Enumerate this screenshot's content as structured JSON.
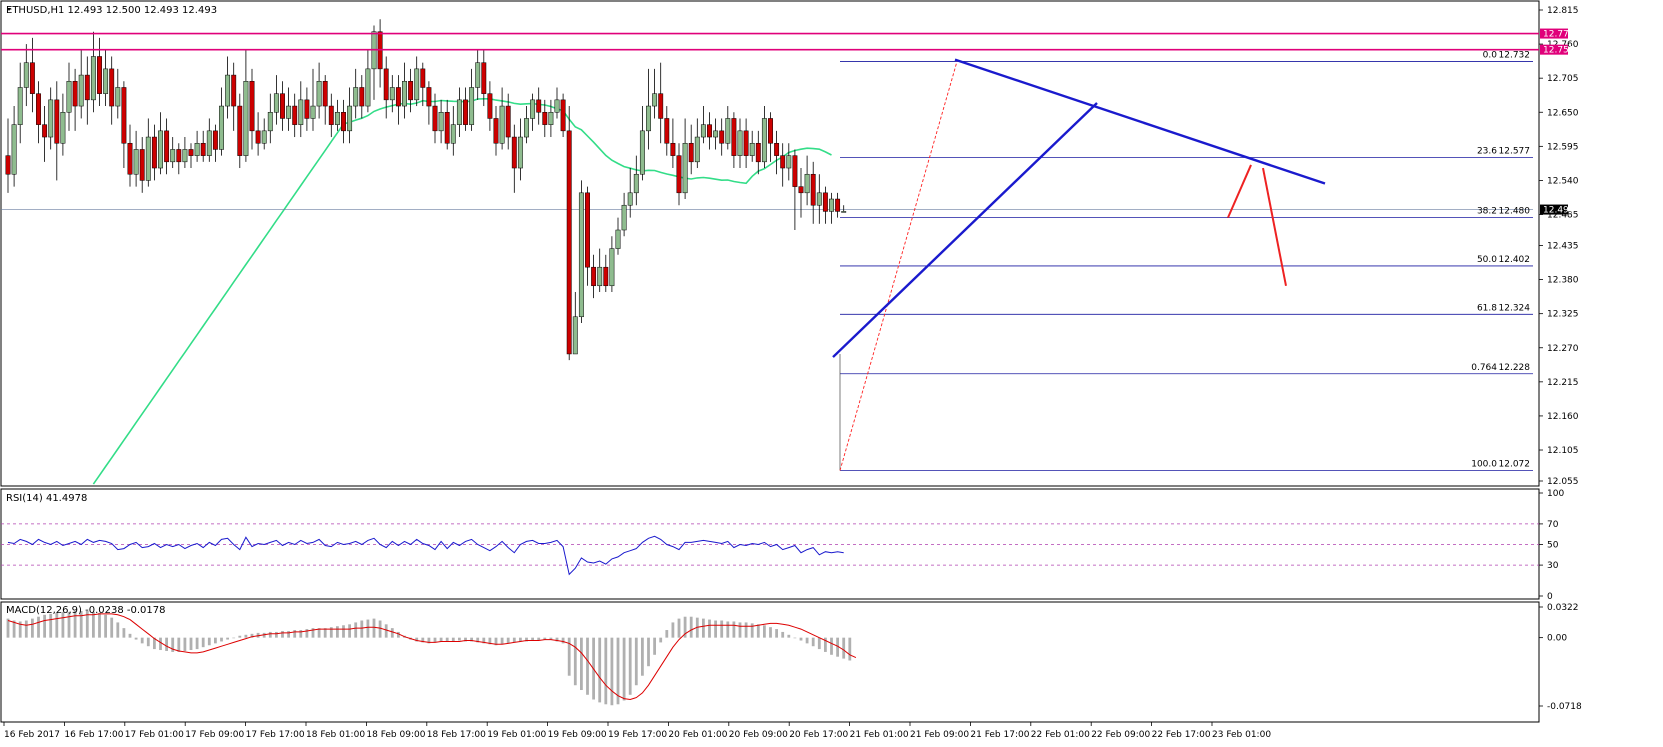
{
  "header": {
    "symbol_info": "ETHUSD,H1  12.493 12.500 12.493 12.493",
    "rsi_label": "RSI(14) 41.4978",
    "macd_label": "MACD(12,26,9) -0.0238 -0.0178"
  },
  "colors": {
    "bull_candle": "#8fbc8f",
    "bear_candle": "#cc0000",
    "ma_line": "#33dd88",
    "trend_line": "#1a1acd",
    "fib_line": "#1a1aa0",
    "resistance_line": "#e0007a",
    "rsi_line": "#1a1acd",
    "rsi_levels": "#b040b0",
    "macd_signal": "#dd0000",
    "macd_hist": "#b0b0b0",
    "projection": "#ee2222"
  },
  "chart_data": {
    "type": "candlestick",
    "price_axis": {
      "ticks": [
        "12.815",
        "12.760",
        "12.705",
        "12.650",
        "12.595",
        "12.540",
        "12.485",
        "12.435",
        "12.380",
        "12.325",
        "12.270",
        "12.215",
        "12.160",
        "12.105",
        "12.055"
      ],
      "range": [
        12.055,
        12.825
      ]
    },
    "time_axis": {
      "ticks": [
        "16 Feb 2017",
        "16 Feb 17:00",
        "17 Feb 01:00",
        "17 Feb 09:00",
        "17 Feb 17:00",
        "18 Feb 01:00",
        "18 Feb 09:00",
        "18 Feb 17:00",
        "19 Feb 01:00",
        "19 Feb 09:00",
        "19 Feb 17:00",
        "20 Feb 01:00",
        "20 Feb 09:00",
        "20 Feb 17:00",
        "21 Feb 01:00",
        "21 Feb 09:00",
        "21 Feb 17:00",
        "22 Feb 01:00",
        "22 Feb 09:00",
        "22 Feb 17:00",
        "23 Feb 01:00"
      ]
    },
    "resistance_levels": [
      {
        "value": 12.777,
        "label": "12.777"
      },
      {
        "value": 12.751,
        "label": "12.751"
      }
    ],
    "current_price": {
      "value": 12.493,
      "label": "12.493"
    },
    "fibonacci": [
      {
        "ratio": "0.0",
        "value": 12.732,
        "label": "12.732"
      },
      {
        "ratio": "23.6",
        "value": 12.577,
        "label": "12.577"
      },
      {
        "ratio": "38.2",
        "value": 12.48,
        "label": "12.480"
      },
      {
        "ratio": "50.0",
        "value": 12.402,
        "label": "12.402"
      },
      {
        "ratio": "61.8",
        "value": 12.324,
        "label": "12.324"
      },
      {
        "ratio": "0.764",
        "value": 12.228,
        "label": "12.228"
      },
      {
        "ratio": "100.0",
        "value": 12.072,
        "label": "12.072"
      }
    ],
    "candles": [
      [
        12.58,
        12.55,
        12.64,
        12.52
      ],
      [
        12.55,
        12.63,
        12.66,
        12.53
      ],
      [
        12.63,
        12.69,
        12.73,
        12.6
      ],
      [
        12.69,
        12.73,
        12.76,
        12.66
      ],
      [
        12.73,
        12.68,
        12.77,
        12.65
      ],
      [
        12.68,
        12.63,
        12.7,
        12.6
      ],
      [
        12.63,
        12.61,
        12.66,
        12.57
      ],
      [
        12.61,
        12.67,
        12.69,
        12.59
      ],
      [
        12.67,
        12.6,
        12.7,
        12.54
      ],
      [
        12.6,
        12.65,
        12.68,
        12.58
      ],
      [
        12.65,
        12.7,
        12.73,
        12.62
      ],
      [
        12.7,
        12.66,
        12.72,
        12.62
      ],
      [
        12.66,
        12.71,
        12.75,
        12.64
      ],
      [
        12.71,
        12.67,
        12.74,
        12.63
      ],
      [
        12.67,
        12.74,
        12.78,
        12.65
      ],
      [
        12.74,
        12.68,
        12.77,
        12.66
      ],
      [
        12.68,
        12.72,
        12.75,
        12.66
      ],
      [
        12.72,
        12.66,
        12.74,
        12.63
      ],
      [
        12.66,
        12.69,
        12.72,
        12.64
      ],
      [
        12.69,
        12.6,
        12.7,
        12.56
      ],
      [
        12.6,
        12.55,
        12.63,
        12.53
      ],
      [
        12.55,
        12.59,
        12.62,
        12.53
      ],
      [
        12.59,
        12.54,
        12.61,
        12.52
      ],
      [
        12.54,
        12.61,
        12.64,
        12.53
      ],
      [
        12.61,
        12.56,
        12.63,
        12.54
      ],
      [
        12.56,
        12.62,
        12.65,
        12.55
      ],
      [
        12.62,
        12.57,
        12.64,
        12.55
      ],
      [
        12.57,
        12.59,
        12.61,
        12.56
      ],
      [
        12.59,
        12.57,
        12.6,
        12.55
      ],
      [
        12.57,
        12.59,
        12.61,
        12.56
      ],
      [
        12.59,
        12.58,
        12.6,
        12.56
      ],
      [
        12.58,
        12.6,
        12.62,
        12.57
      ],
      [
        12.6,
        12.58,
        12.62,
        12.57
      ],
      [
        12.58,
        12.62,
        12.64,
        12.57
      ],
      [
        12.62,
        12.59,
        12.63,
        12.57
      ],
      [
        12.59,
        12.66,
        12.69,
        12.58
      ],
      [
        12.66,
        12.71,
        12.74,
        12.64
      ],
      [
        12.71,
        12.66,
        12.73,
        12.62
      ],
      [
        12.66,
        12.58,
        12.68,
        12.56
      ],
      [
        12.58,
        12.7,
        12.75,
        12.57
      ],
      [
        12.7,
        12.62,
        12.72,
        12.59
      ],
      [
        12.62,
        12.6,
        12.65,
        12.58
      ],
      [
        12.6,
        12.62,
        12.64,
        12.59
      ],
      [
        12.62,
        12.65,
        12.68,
        12.6
      ],
      [
        12.65,
        12.68,
        12.71,
        12.63
      ],
      [
        12.68,
        12.64,
        12.7,
        12.62
      ],
      [
        12.64,
        12.66,
        12.69,
        12.62
      ],
      [
        12.66,
        12.63,
        12.68,
        12.61
      ],
      [
        12.63,
        12.67,
        12.7,
        12.61
      ],
      [
        12.67,
        12.64,
        12.69,
        12.62
      ],
      [
        12.64,
        12.66,
        12.72,
        12.62
      ],
      [
        12.66,
        12.7,
        12.73,
        12.64
      ],
      [
        12.7,
        12.66,
        12.71,
        12.63
      ],
      [
        12.66,
        12.63,
        12.68,
        12.61
      ],
      [
        12.63,
        12.65,
        12.67,
        12.62
      ],
      [
        12.65,
        12.62,
        12.67,
        12.6
      ],
      [
        12.62,
        12.66,
        12.69,
        12.6
      ],
      [
        12.66,
        12.69,
        12.72,
        12.64
      ],
      [
        12.69,
        12.66,
        12.71,
        12.64
      ],
      [
        12.66,
        12.72,
        12.75,
        12.65
      ],
      [
        12.72,
        12.78,
        12.79,
        12.67
      ],
      [
        12.78,
        12.72,
        12.8,
        12.69
      ],
      [
        12.72,
        12.67,
        12.74,
        12.64
      ],
      [
        12.67,
        12.69,
        12.71,
        12.65
      ],
      [
        12.69,
        12.66,
        12.71,
        12.63
      ],
      [
        12.66,
        12.7,
        12.73,
        12.64
      ],
      [
        12.7,
        12.67,
        12.72,
        12.65
      ],
      [
        12.67,
        12.72,
        12.74,
        12.66
      ],
      [
        12.72,
        12.69,
        12.73,
        12.66
      ],
      [
        12.69,
        12.66,
        12.7,
        12.63
      ],
      [
        12.66,
        12.62,
        12.68,
        12.6
      ],
      [
        12.62,
        12.65,
        12.67,
        12.6
      ],
      [
        12.65,
        12.6,
        12.67,
        12.59
      ],
      [
        12.6,
        12.63,
        12.66,
        12.58
      ],
      [
        12.63,
        12.67,
        12.69,
        12.61
      ],
      [
        12.67,
        12.63,
        12.69,
        12.62
      ],
      [
        12.63,
        12.69,
        12.72,
        12.62
      ],
      [
        12.69,
        12.73,
        12.75,
        12.67
      ],
      [
        12.73,
        12.68,
        12.75,
        12.66
      ],
      [
        12.68,
        12.64,
        12.7,
        12.62
      ],
      [
        12.64,
        12.6,
        12.66,
        12.58
      ],
      [
        12.6,
        12.66,
        12.69,
        12.59
      ],
      [
        12.66,
        12.61,
        12.68,
        12.59
      ],
      [
        12.61,
        12.56,
        12.63,
        12.52
      ],
      [
        12.56,
        12.61,
        12.64,
        12.54
      ],
      [
        12.61,
        12.64,
        12.66,
        12.6
      ],
      [
        12.64,
        12.67,
        12.68,
        12.62
      ],
      [
        12.67,
        12.65,
        12.69,
        12.63
      ],
      [
        12.65,
        12.63,
        12.67,
        12.61
      ],
      [
        12.63,
        12.65,
        12.67,
        12.61
      ],
      [
        12.65,
        12.67,
        12.69,
        12.64
      ],
      [
        12.67,
        12.62,
        12.68,
        12.61
      ],
      [
        12.62,
        12.26,
        12.66,
        12.25
      ],
      [
        12.26,
        12.32,
        12.36,
        12.26
      ],
      [
        12.32,
        12.52,
        12.54,
        12.31
      ],
      [
        12.52,
        12.4,
        12.53,
        12.37
      ],
      [
        12.4,
        12.37,
        12.42,
        12.35
      ],
      [
        12.37,
        12.4,
        12.43,
        12.36
      ],
      [
        12.4,
        12.37,
        12.42,
        12.36
      ],
      [
        12.37,
        12.43,
        12.45,
        12.36
      ],
      [
        12.43,
        12.46,
        12.48,
        12.42
      ],
      [
        12.46,
        12.5,
        12.52,
        12.45
      ],
      [
        12.5,
        12.52,
        12.56,
        12.48
      ],
      [
        12.52,
        12.55,
        12.58,
        12.5
      ],
      [
        12.55,
        12.62,
        12.66,
        12.54
      ],
      [
        12.62,
        12.66,
        12.72,
        12.59
      ],
      [
        12.66,
        12.68,
        12.72,
        12.64
      ],
      [
        12.68,
        12.64,
        12.73,
        12.6
      ],
      [
        12.64,
        12.6,
        12.66,
        12.58
      ],
      [
        12.6,
        12.58,
        12.64,
        12.56
      ],
      [
        12.58,
        12.52,
        12.6,
        12.5
      ],
      [
        12.52,
        12.6,
        12.64,
        12.51
      ],
      [
        12.6,
        12.57,
        12.63,
        12.55
      ],
      [
        12.57,
        12.61,
        12.64,
        12.56
      ],
      [
        12.61,
        12.63,
        12.66,
        12.6
      ],
      [
        12.63,
        12.61,
        12.65,
        12.59
      ],
      [
        12.61,
        12.62,
        12.64,
        12.59
      ],
      [
        12.62,
        12.6,
        12.64,
        12.58
      ],
      [
        12.6,
        12.64,
        12.66,
        12.59
      ],
      [
        12.64,
        12.58,
        12.65,
        12.56
      ],
      [
        12.58,
        12.62,
        12.64,
        12.56
      ],
      [
        12.62,
        12.58,
        12.64,
        12.56
      ],
      [
        12.58,
        12.6,
        12.62,
        12.57
      ],
      [
        12.6,
        12.57,
        12.62,
        12.55
      ],
      [
        12.57,
        12.64,
        12.66,
        12.56
      ],
      [
        12.64,
        12.6,
        12.65,
        12.57
      ],
      [
        12.6,
        12.58,
        12.62,
        12.55
      ],
      [
        12.58,
        12.56,
        12.6,
        12.53
      ],
      [
        12.56,
        12.58,
        12.6,
        12.54
      ],
      [
        12.58,
        12.53,
        12.59,
        12.46
      ],
      [
        12.53,
        12.52,
        12.56,
        12.48
      ],
      [
        12.52,
        12.55,
        12.58,
        12.5
      ],
      [
        12.55,
        12.5,
        12.57,
        12.47
      ],
      [
        12.5,
        12.52,
        12.55,
        12.47
      ],
      [
        12.52,
        12.49,
        12.53,
        12.47
      ],
      [
        12.49,
        12.51,
        12.52,
        12.47
      ],
      [
        12.51,
        12.49,
        12.52,
        12.48
      ],
      [
        12.49,
        12.49,
        12.5,
        12.49
      ]
    ],
    "rsi": {
      "levels": [
        70,
        50,
        30
      ],
      "axis_ticks": [
        "100",
        "70",
        "50",
        "30",
        "0"
      ],
      "values": [
        52,
        51,
        55,
        53,
        50,
        55,
        52,
        50,
        53,
        49,
        51,
        53,
        50,
        55,
        52,
        54,
        53,
        51,
        45,
        46,
        50,
        52,
        47,
        48,
        51,
        47,
        50,
        48,
        50,
        46,
        49,
        51,
        47,
        52,
        49,
        55,
        56,
        50,
        45,
        57,
        48,
        51,
        50,
        52,
        54,
        49,
        52,
        50,
        54,
        51,
        52,
        55,
        49,
        48,
        52,
        50,
        51,
        53,
        50,
        54,
        56,
        50,
        47,
        53,
        49,
        53,
        50,
        55,
        51,
        49,
        45,
        53,
        46,
        52,
        49,
        53,
        55,
        50,
        47,
        44,
        48,
        53,
        47,
        42,
        50,
        53,
        54,
        51,
        51,
        52,
        54,
        48,
        21,
        27,
        37,
        33,
        32,
        34,
        31,
        36,
        38,
        42,
        44,
        46,
        52,
        56,
        58,
        55,
        50,
        48,
        45,
        52,
        52,
        53,
        54,
        53,
        52,
        51,
        53,
        47,
        50,
        49,
        51,
        50,
        52,
        48,
        50,
        45,
        47,
        49,
        42,
        45,
        47,
        40,
        43,
        42,
        43,
        42
      ]
    },
    "macd": {
      "axis_ticks": [
        "0.0322",
        "0.00",
        "-0.0718"
      ],
      "signal": [
        0.018,
        0.016,
        0.014,
        0.013,
        0.014,
        0.016,
        0.018,
        0.019,
        0.02,
        0.021,
        0.022,
        0.023,
        0.023,
        0.024,
        0.024,
        0.025,
        0.025,
        0.025,
        0.024,
        0.022,
        0.019,
        0.014,
        0.009,
        0.004,
        -0.001,
        -0.005,
        -0.009,
        -0.012,
        -0.014,
        -0.015,
        -0.016,
        -0.016,
        -0.015,
        -0.013,
        -0.011,
        -0.009,
        -0.007,
        -0.005,
        -0.003,
        -0.001,
        0.001,
        0.002,
        0.003,
        0.004,
        0.004,
        0.005,
        0.005,
        0.006,
        0.006,
        0.007,
        0.008,
        0.009,
        0.009,
        0.009,
        0.009,
        0.009,
        0.009,
        0.01,
        0.01,
        0.011,
        0.011,
        0.01,
        0.008,
        0.006,
        0.004,
        0.001,
        -0.001,
        -0.003,
        -0.004,
        -0.005,
        -0.005,
        -0.004,
        -0.004,
        -0.004,
        -0.004,
        -0.003,
        -0.003,
        -0.004,
        -0.005,
        -0.006,
        -0.007,
        -0.007,
        -0.006,
        -0.005,
        -0.004,
        -0.003,
        -0.003,
        -0.003,
        -0.002,
        -0.002,
        -0.003,
        -0.004,
        -0.006,
        -0.01,
        -0.016,
        -0.024,
        -0.033,
        -0.042,
        -0.05,
        -0.056,
        -0.061,
        -0.064,
        -0.065,
        -0.063,
        -0.058,
        -0.05,
        -0.04,
        -0.03,
        -0.02,
        -0.01,
        -0.002,
        0.004,
        0.008,
        0.011,
        0.012,
        0.013,
        0.013,
        0.013,
        0.013,
        0.013,
        0.012,
        0.012,
        0.012,
        0.013,
        0.014,
        0.015,
        0.015,
        0.014,
        0.013,
        0.011,
        0.009,
        0.006,
        0.003,
        0.0,
        -0.003,
        -0.006,
        -0.009,
        -0.013,
        -0.018,
        -0.021
      ],
      "histogram": [
        0.02,
        0.018,
        0.017,
        0.018,
        0.02,
        0.022,
        0.024,
        0.025,
        0.026,
        0.027,
        0.027,
        0.028,
        0.028,
        0.028,
        0.027,
        0.026,
        0.024,
        0.021,
        0.016,
        0.01,
        0.004,
        -0.002,
        -0.006,
        -0.009,
        -0.012,
        -0.013,
        -0.014,
        -0.015,
        -0.015,
        -0.014,
        -0.013,
        -0.012,
        -0.01,
        -0.008,
        -0.006,
        -0.004,
        -0.002,
        0.0,
        0.002,
        0.003,
        0.004,
        0.005,
        0.005,
        0.006,
        0.006,
        0.007,
        0.007,
        0.008,
        0.008,
        0.009,
        0.01,
        0.01,
        0.01,
        0.011,
        0.012,
        0.013,
        0.014,
        0.016,
        0.018,
        0.019,
        0.02,
        0.018,
        0.014,
        0.01,
        0.006,
        0.002,
        -0.002,
        -0.004,
        -0.005,
        -0.006,
        -0.005,
        -0.004,
        -0.004,
        -0.004,
        -0.003,
        -0.004,
        -0.004,
        -0.005,
        -0.006,
        -0.007,
        -0.008,
        -0.007,
        -0.006,
        -0.005,
        -0.004,
        -0.004,
        -0.003,
        -0.003,
        -0.002,
        -0.002,
        -0.004,
        -0.006,
        -0.04,
        -0.05,
        -0.055,
        -0.06,
        -0.065,
        -0.068,
        -0.07,
        -0.071,
        -0.07,
        -0.066,
        -0.06,
        -0.05,
        -0.04,
        -0.03,
        -0.018,
        -0.005,
        0.008,
        0.016,
        0.02,
        0.022,
        0.022,
        0.021,
        0.02,
        0.019,
        0.018,
        0.018,
        0.017,
        0.017,
        0.016,
        0.016,
        0.015,
        0.014,
        0.013,
        0.011,
        0.009,
        0.006,
        0.003,
        0.0,
        -0.003,
        -0.006,
        -0.009,
        -0.012,
        -0.015,
        -0.018,
        -0.02,
        -0.022,
        -0.024
      ]
    }
  }
}
